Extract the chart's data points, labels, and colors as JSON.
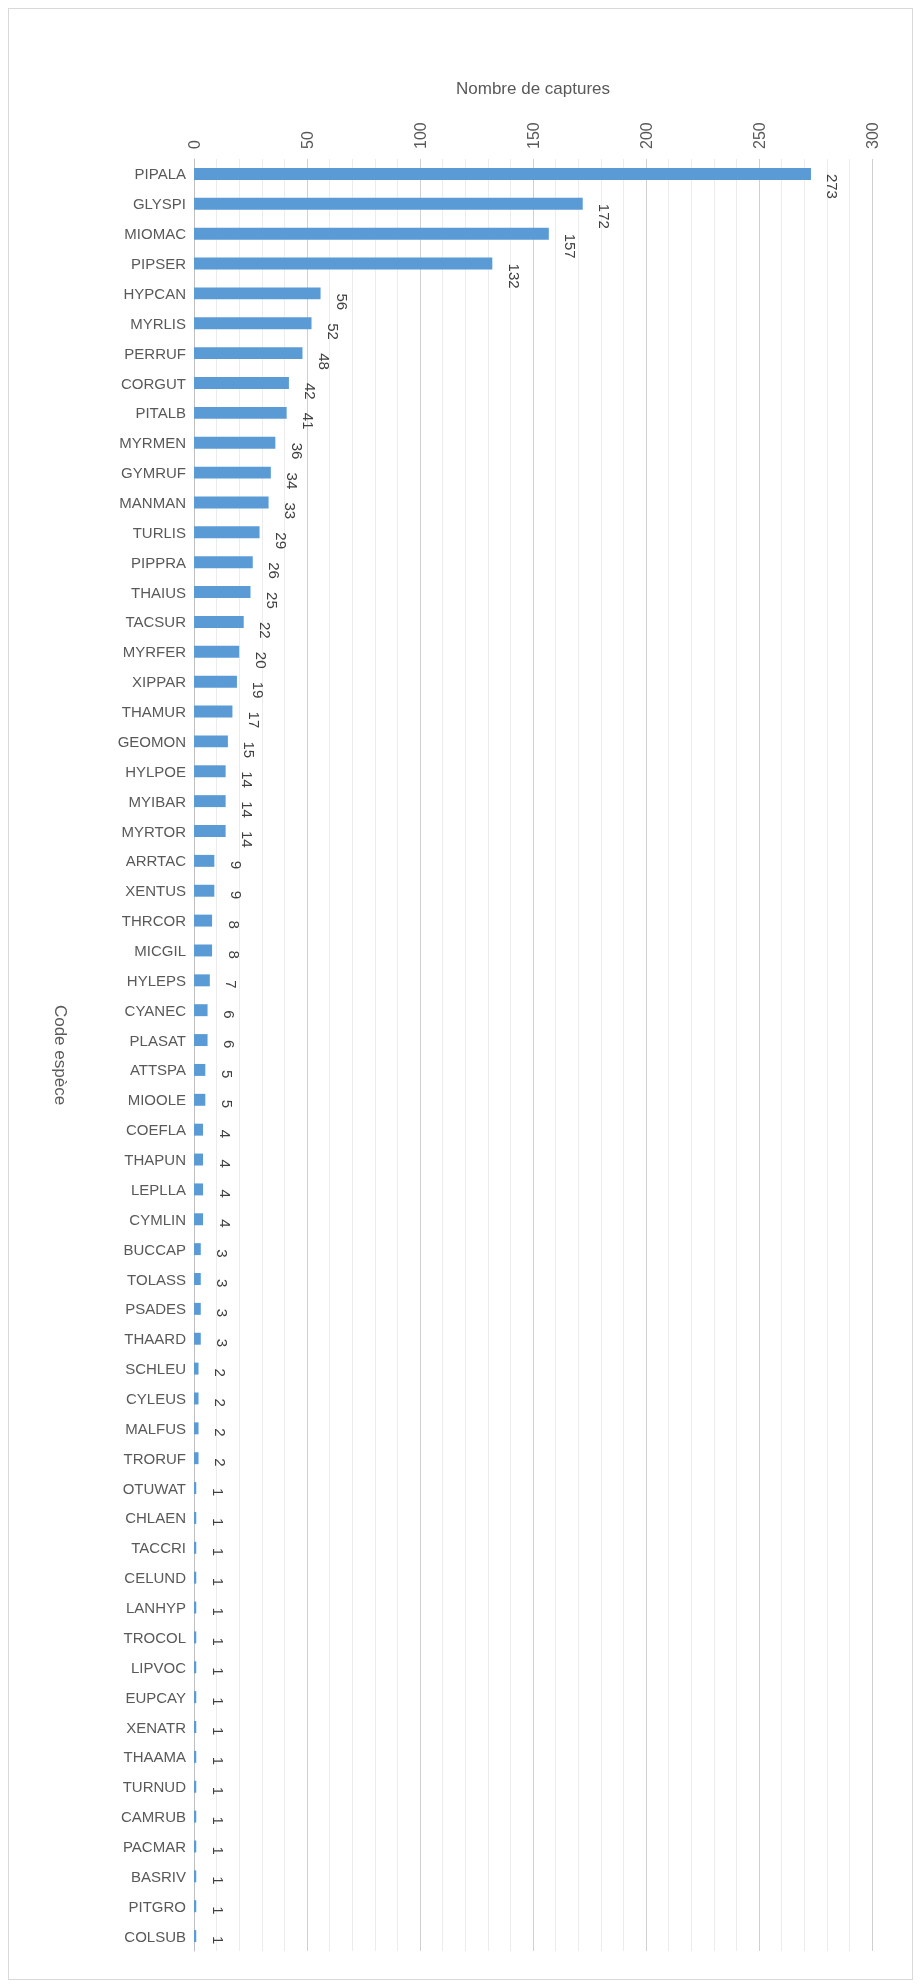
{
  "chart_data": {
    "type": "bar",
    "orientation": "horizontal",
    "xlabel": "Nombre de captures",
    "ylabel": "Code espèce",
    "color": "#5b9bd5",
    "categories": [
      "PIPALA",
      "GLYSPI",
      "MIOMAC",
      "PIPSER",
      "HYPCAN",
      "MYRLIS",
      "PERRUF",
      "CORGUT",
      "PITALB",
      "MYRMEN",
      "GYMRUF",
      "MANMAN",
      "TURLIS",
      "PIPPRA",
      "THAIUS",
      "TACSUR",
      "MYRFER",
      "XIPPAR",
      "THAMUR",
      "GEOMON",
      "HYLPOE",
      "MYIBAR",
      "MYRTOR",
      "ARRTAC",
      "XENTUS",
      "THRCOR",
      "MICGIL",
      "HYLEPS",
      "CYANEC",
      "PLASAT",
      "ATTSPA",
      "MIOOLE",
      "COEFLA",
      "THAPUN",
      "LEPLLA",
      "CYMLIN",
      "BUCCAP",
      "TOLASS",
      "PSADES",
      "THAARD",
      "SCHLEU",
      "CYLEUS",
      "MALFUS",
      "TRORUF",
      "OTUWAT",
      "CHLAEN",
      "TACCRI",
      "CELUND",
      "LANHYP",
      "TROCOL",
      "LIPVOC",
      "EUPCAY",
      "XENATR",
      "THAAMA",
      "TURNUD",
      "CAMRUB",
      "PACMAR",
      "BASRIV",
      "PITGRO",
      "COLSUB"
    ],
    "values": [
      273,
      172,
      157,
      132,
      56,
      52,
      48,
      42,
      41,
      36,
      34,
      33,
      29,
      26,
      25,
      22,
      20,
      19,
      17,
      15,
      14,
      14,
      14,
      9,
      9,
      8,
      8,
      7,
      6,
      6,
      5,
      5,
      4,
      4,
      4,
      4,
      3,
      3,
      3,
      3,
      2,
      2,
      2,
      2,
      1,
      1,
      1,
      1,
      1,
      1,
      1,
      1,
      1,
      1,
      1,
      1,
      1,
      1,
      1,
      1
    ],
    "data_labels": true,
    "xlim": [
      0,
      300
    ],
    "xticks": [
      0,
      50,
      100,
      150,
      200,
      250,
      300
    ],
    "grid": true
  }
}
